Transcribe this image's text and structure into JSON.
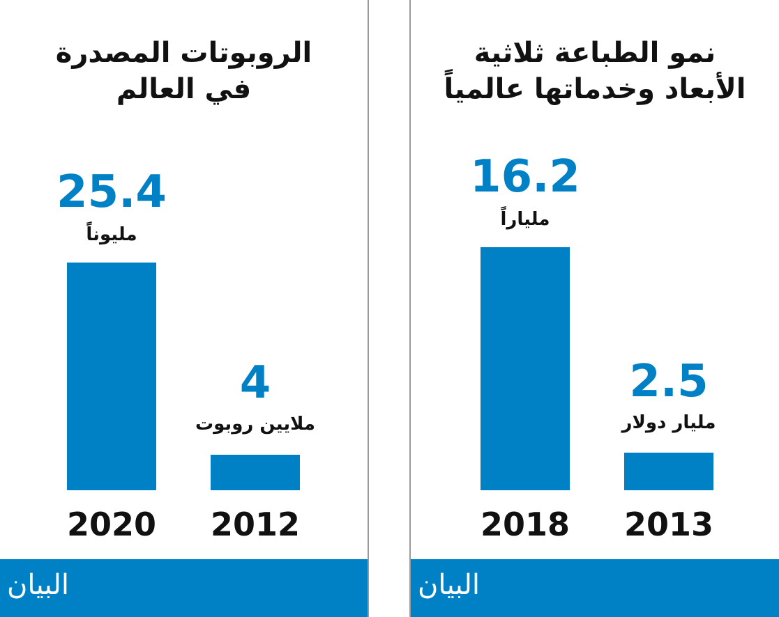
{
  "chart_data": [
    {
      "type": "bar",
      "title": "الروبوتات المصدرة في العالم",
      "categories": [
        "2020",
        "2012"
      ],
      "values": [
        25.4,
        4
      ],
      "value_labels": [
        "25.4",
        "4"
      ],
      "units": [
        "مليوناً",
        "ملايين روبوت"
      ],
      "logo": "البيان"
    },
    {
      "type": "bar",
      "title": "نمو الطباعة ثلاثية الأبعاد وخدماتها عالمياً",
      "categories": [
        "2018",
        "2013"
      ],
      "values": [
        16.2,
        2.5
      ],
      "value_labels": [
        "16.2",
        "2.5"
      ],
      "units": [
        "ملياراً",
        "مليار دولار"
      ],
      "logo": "البيان"
    }
  ],
  "colors": {
    "accent": "#0081c6"
  }
}
